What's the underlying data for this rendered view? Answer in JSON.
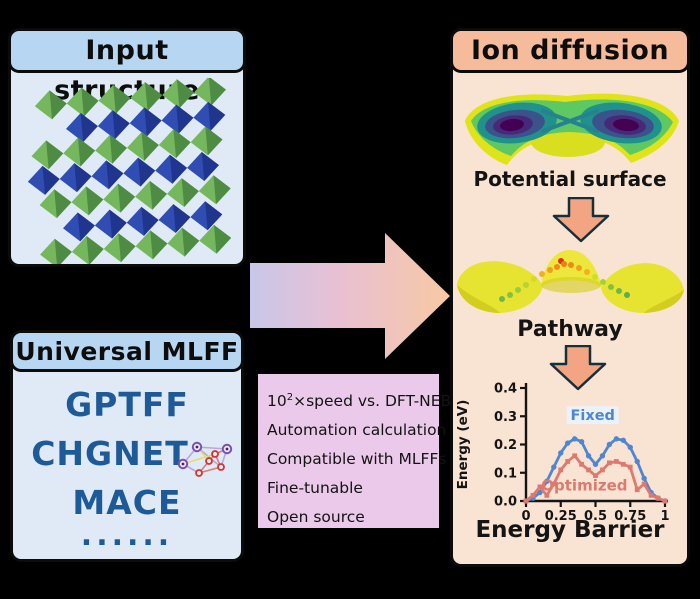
{
  "panels": {
    "input_structure": {
      "title": "Input structure"
    },
    "universal_mlff": {
      "title": "Universal MLFF",
      "items": [
        "GPTFF",
        "CHGNET",
        "MACE",
        "......"
      ]
    },
    "ion_diffusion": {
      "title": "Ion diffusion",
      "step1_label": "Potential surface",
      "step2_label": "Pathway",
      "step3_label": "Energy Barrier"
    }
  },
  "feature_box": {
    "speed_base": "10",
    "speed_exponent": "2",
    "speed_rest": "×speed vs. DFT-NEB",
    "items": [
      "Automation calculation",
      "Compatible with MLFFs",
      "Fine-tunable",
      "Open source"
    ]
  },
  "chart_data": {
    "type": "line",
    "title": "Energy Barrier",
    "xlabel": "",
    "ylabel": "Energy (eV)",
    "xlim": [
      0,
      1
    ],
    "ylim": [
      0,
      0.4
    ],
    "grid": false,
    "legend_position": "inline",
    "x_ticks": [
      0,
      0.25,
      0.5,
      0.75,
      1
    ],
    "x_tick_labels": [
      "0",
      "0.25",
      "0.5",
      "0.75",
      "1"
    ],
    "y_ticks": [
      0.0,
      0.1,
      0.2,
      0.3,
      0.4
    ],
    "y_tick_labels": [
      "0.0",
      "0.1",
      "0.2",
      "0.3",
      "0.4"
    ],
    "x": [
      0,
      0.05,
      0.1,
      0.15,
      0.2,
      0.25,
      0.3,
      0.35,
      0.4,
      0.45,
      0.5,
      0.55,
      0.6,
      0.65,
      0.7,
      0.75,
      0.8,
      0.85,
      0.9,
      0.95,
      1
    ],
    "series": [
      {
        "name": "Fixed",
        "color": "#4e86d2",
        "marker": "circle",
        "label_xy": [
          0.48,
          0.29
        ],
        "values": [
          0.0,
          0.01,
          0.03,
          0.07,
          0.12,
          0.17,
          0.205,
          0.22,
          0.21,
          0.16,
          0.13,
          0.16,
          0.2,
          0.22,
          0.215,
          0.19,
          0.14,
          0.08,
          0.03,
          0.01,
          0.0
        ]
      },
      {
        "name": "Optimized",
        "color": "#dd7a70",
        "marker": "square",
        "label_xy": [
          0.42,
          0.04
        ],
        "values": [
          0.0,
          0.02,
          0.05,
          0.02,
          0.06,
          0.11,
          0.14,
          0.16,
          0.13,
          0.11,
          0.09,
          0.11,
          0.135,
          0.14,
          0.13,
          0.12,
          0.04,
          0.06,
          0.02,
          0.01,
          0.0
        ]
      }
    ]
  },
  "colors": {
    "background": "#000000",
    "blue_header": "#b7d6f1",
    "blue_panel_body": "#dfeaf6",
    "peach_header": "#f6bb9a",
    "peach_panel_body": "#f9e4d3",
    "feature_box_bg": "#ebc9ea",
    "mlff_text": "#1d5a97",
    "fixed_series": "#4e86d2",
    "optimized_series": "#dd7a70",
    "down_arrow_fill": "#f2a483",
    "flow_arrow_gradient": [
      "#c9c7e9",
      "#e9c0d3",
      "#f7c9a3"
    ],
    "crystal_green": "#74b75d",
    "crystal_blue": "#2f4db2",
    "surface_yellow": "#e6e431",
    "viridis_palette": [
      "#dfe318",
      "#5ec962",
      "#21918c",
      "#3b528b",
      "#440154"
    ]
  },
  "icons": {
    "network_icon": "graph-network",
    "flow_arrow_icon": "right-block-arrow",
    "down_arrow_icon": "down-block-arrow"
  }
}
